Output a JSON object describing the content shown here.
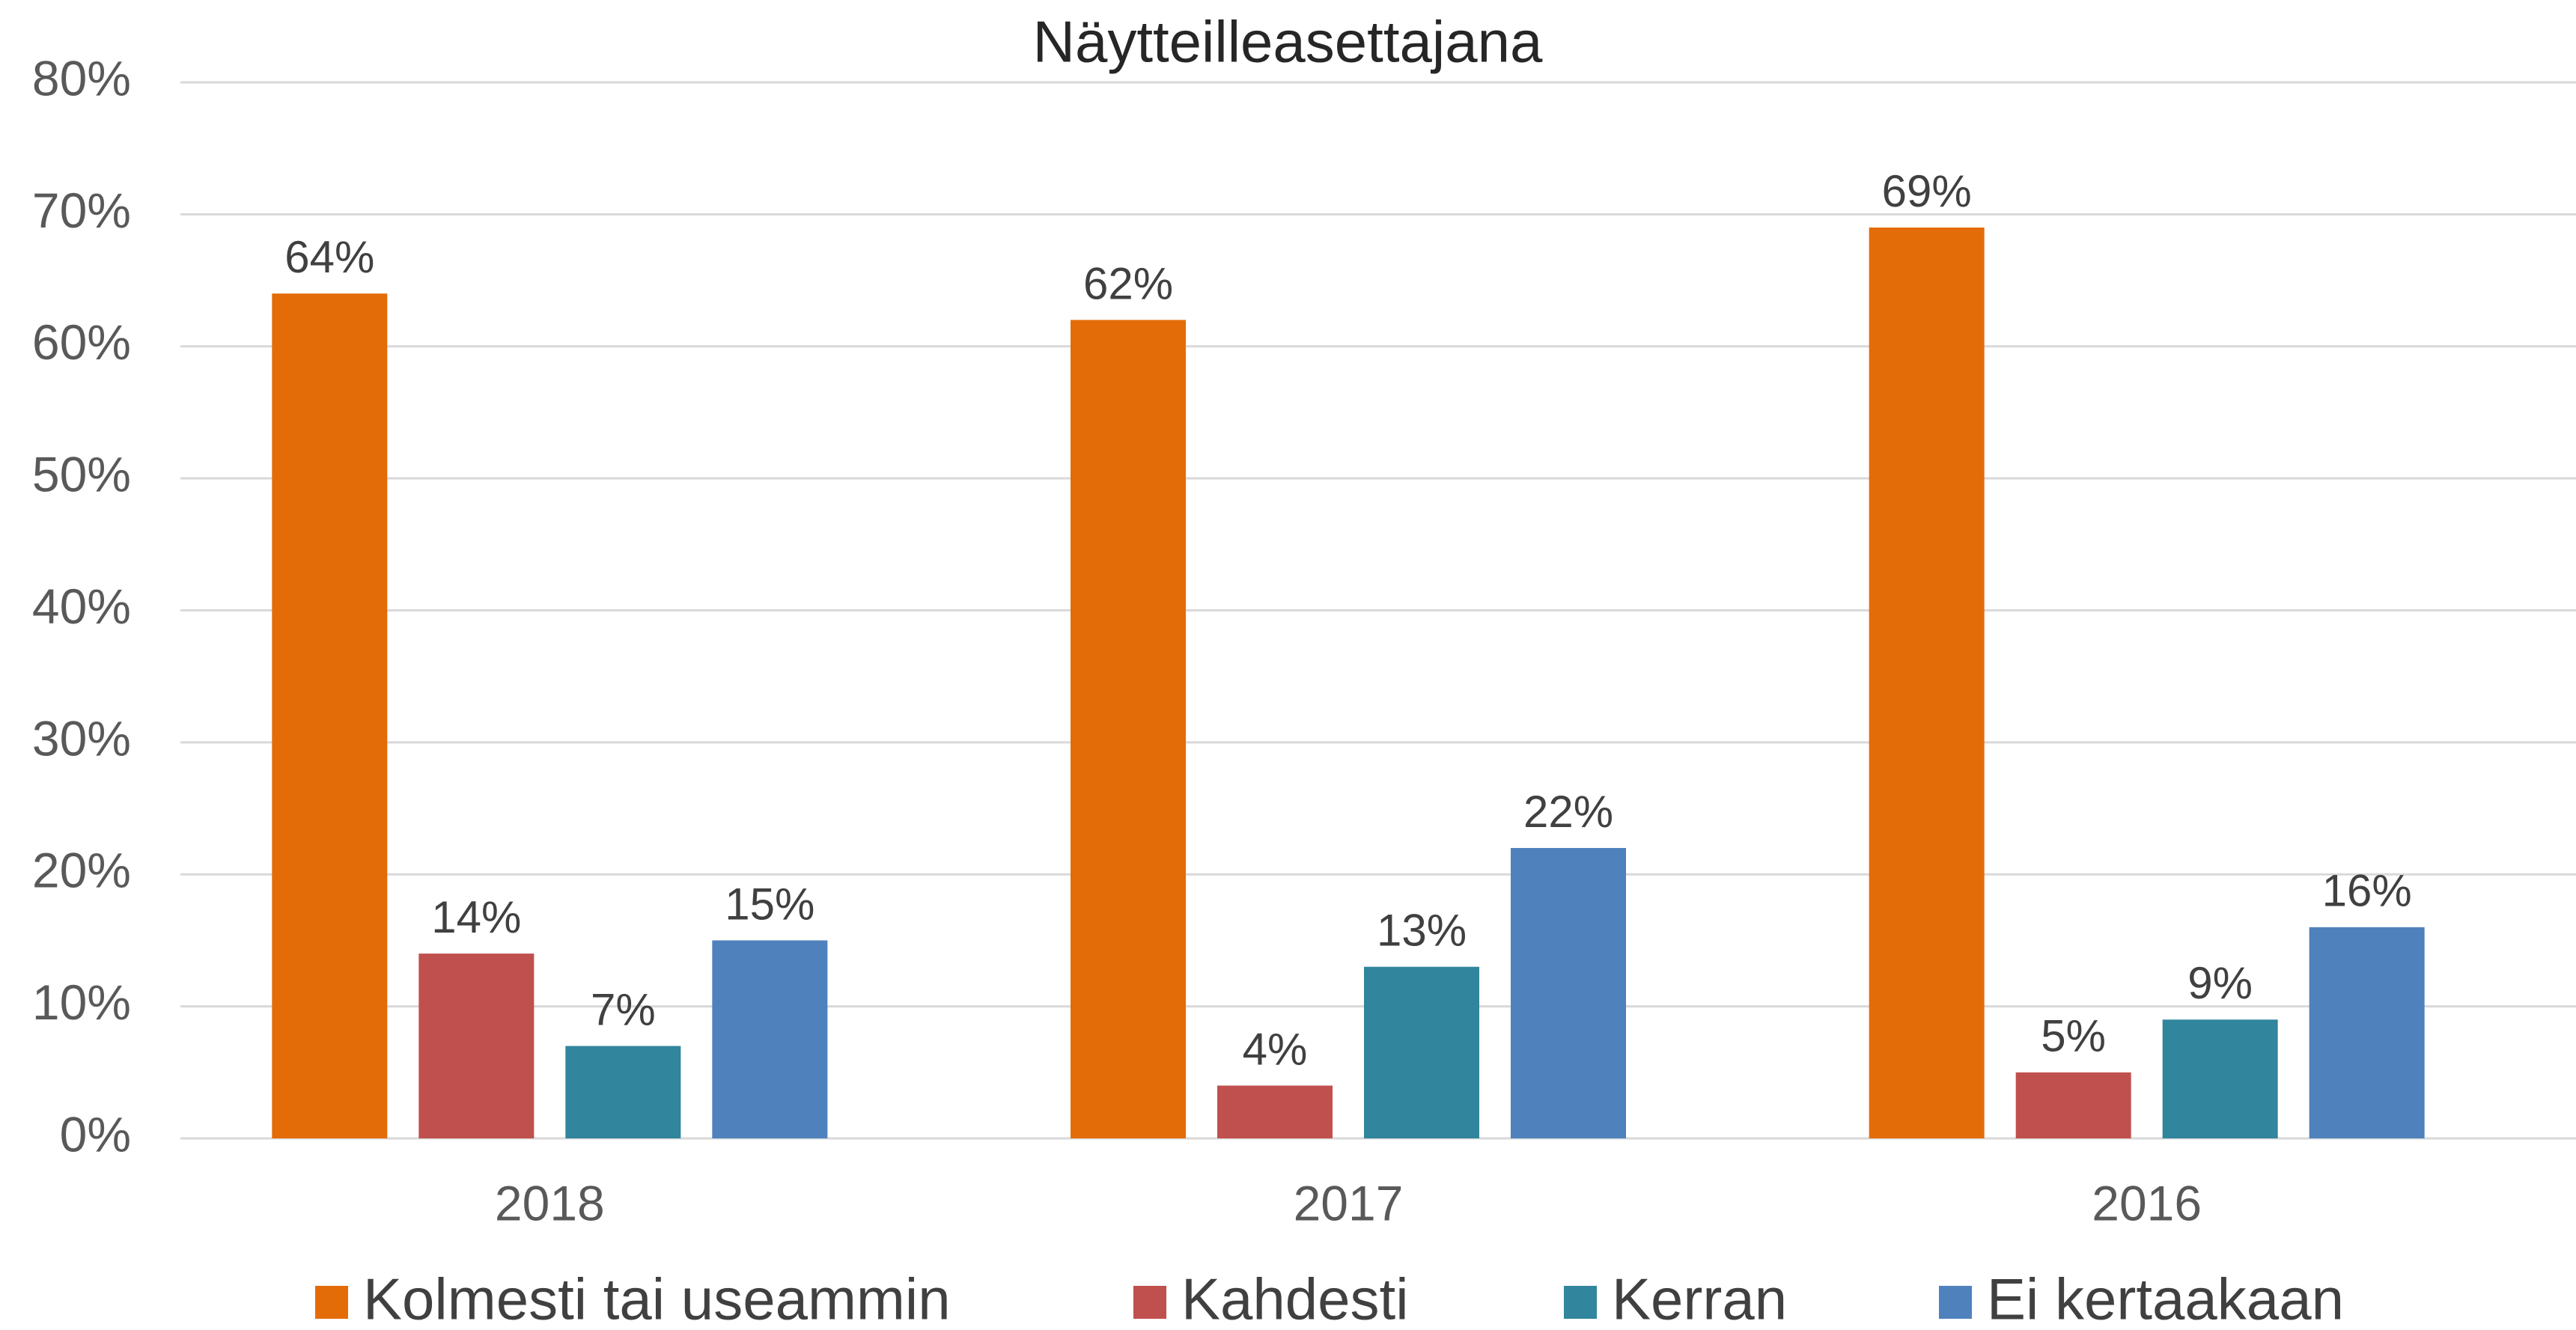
{
  "chart_data": {
    "type": "bar",
    "title": "Näytteilleasettajana",
    "categories": [
      "2018",
      "2017",
      "2016"
    ],
    "series": [
      {
        "name": "Kolmesti tai useammin",
        "color": "#e36c09",
        "values": [
          64,
          62,
          69
        ],
        "value_labels": [
          "64%",
          "62%",
          "69%"
        ]
      },
      {
        "name": "Kahdesti",
        "color": "#c0504d",
        "values": [
          14,
          4,
          5
        ],
        "value_labels": [
          "14%",
          "4%",
          "5%"
        ]
      },
      {
        "name": "Kerran",
        "color": "#31859c",
        "values": [
          7,
          13,
          9
        ],
        "value_labels": [
          "7%",
          "13%",
          "9%"
        ]
      },
      {
        "name": "Ei kertaakaan",
        "color": "#4f81bd",
        "values": [
          15,
          22,
          16
        ],
        "value_labels": [
          "15%",
          "22%",
          "16%"
        ]
      }
    ],
    "ylim": [
      0,
      80
    ],
    "yticks": [
      {
        "value": 0,
        "label": "0%"
      },
      {
        "value": 10,
        "label": "10%"
      },
      {
        "value": 20,
        "label": "20%"
      },
      {
        "value": 30,
        "label": "30%"
      },
      {
        "value": 40,
        "label": "40%"
      },
      {
        "value": 50,
        "label": "50%"
      },
      {
        "value": 60,
        "label": "60%"
      },
      {
        "value": 70,
        "label": "70%"
      },
      {
        "value": 80,
        "label": "80%"
      }
    ],
    "grid": true,
    "legend": "bottom"
  }
}
